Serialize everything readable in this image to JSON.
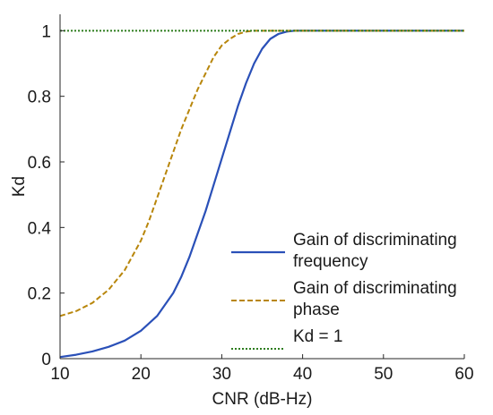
{
  "chart_data": {
    "type": "line",
    "title": "",
    "xlabel": "CNR (dB-Hz)",
    "ylabel": "Kd",
    "xlim": [
      10,
      60
    ],
    "ylim": [
      0,
      1.05
    ],
    "xticks": [
      10,
      20,
      30,
      40,
      50,
      60
    ],
    "xtick_labels": [
      "10",
      "20",
      "30",
      "40",
      "50",
      "60"
    ],
    "yticks": [
      0,
      0.2,
      0.4,
      0.6,
      0.8,
      1
    ],
    "ytick_labels": [
      "0",
      "0.2",
      "0.4",
      "0.6",
      "0.8",
      "1"
    ],
    "grid": false,
    "legend_position": "lower-right",
    "series": [
      {
        "name": "Gain of discriminating frequency",
        "legend_lines": [
          "Gain of discriminating",
          "frequency"
        ],
        "color": "#2a50b8",
        "style": "solid",
        "x": [
          10,
          12,
          14,
          16,
          18,
          20,
          22,
          24,
          25,
          26,
          27,
          28,
          29,
          30,
          31,
          32,
          33,
          34,
          35,
          36,
          37,
          38,
          39,
          40,
          45,
          50,
          55,
          60
        ],
        "y": [
          0.005,
          0.012,
          0.022,
          0.036,
          0.055,
          0.085,
          0.13,
          0.2,
          0.25,
          0.31,
          0.38,
          0.45,
          0.53,
          0.61,
          0.69,
          0.77,
          0.84,
          0.9,
          0.945,
          0.975,
          0.99,
          0.997,
          1.0,
          1.0,
          1.0,
          1.0,
          1.0,
          1.0
        ]
      },
      {
        "name": "Gain of discriminating phase",
        "legend_lines": [
          "Gain of discriminating",
          "phase"
        ],
        "color": "#b8860b",
        "style": "dashed",
        "x": [
          10,
          12,
          14,
          16,
          18,
          20,
          21,
          22,
          23,
          24,
          25,
          26,
          27,
          28,
          29,
          30,
          31,
          32,
          33,
          34,
          35,
          36,
          40,
          45,
          50,
          55,
          60
        ],
        "y": [
          0.13,
          0.145,
          0.17,
          0.21,
          0.27,
          0.36,
          0.42,
          0.49,
          0.56,
          0.63,
          0.7,
          0.76,
          0.82,
          0.87,
          0.92,
          0.955,
          0.975,
          0.99,
          0.997,
          1.0,
          1.0,
          1.0,
          1.0,
          1.0,
          1.0,
          1.0,
          1.0
        ]
      },
      {
        "name": "Kd = 1",
        "legend_lines": [
          "Kd = 1"
        ],
        "color": "#2e7d1e",
        "style": "dotted",
        "x": [
          10,
          60
        ],
        "y": [
          1,
          1
        ]
      }
    ]
  }
}
